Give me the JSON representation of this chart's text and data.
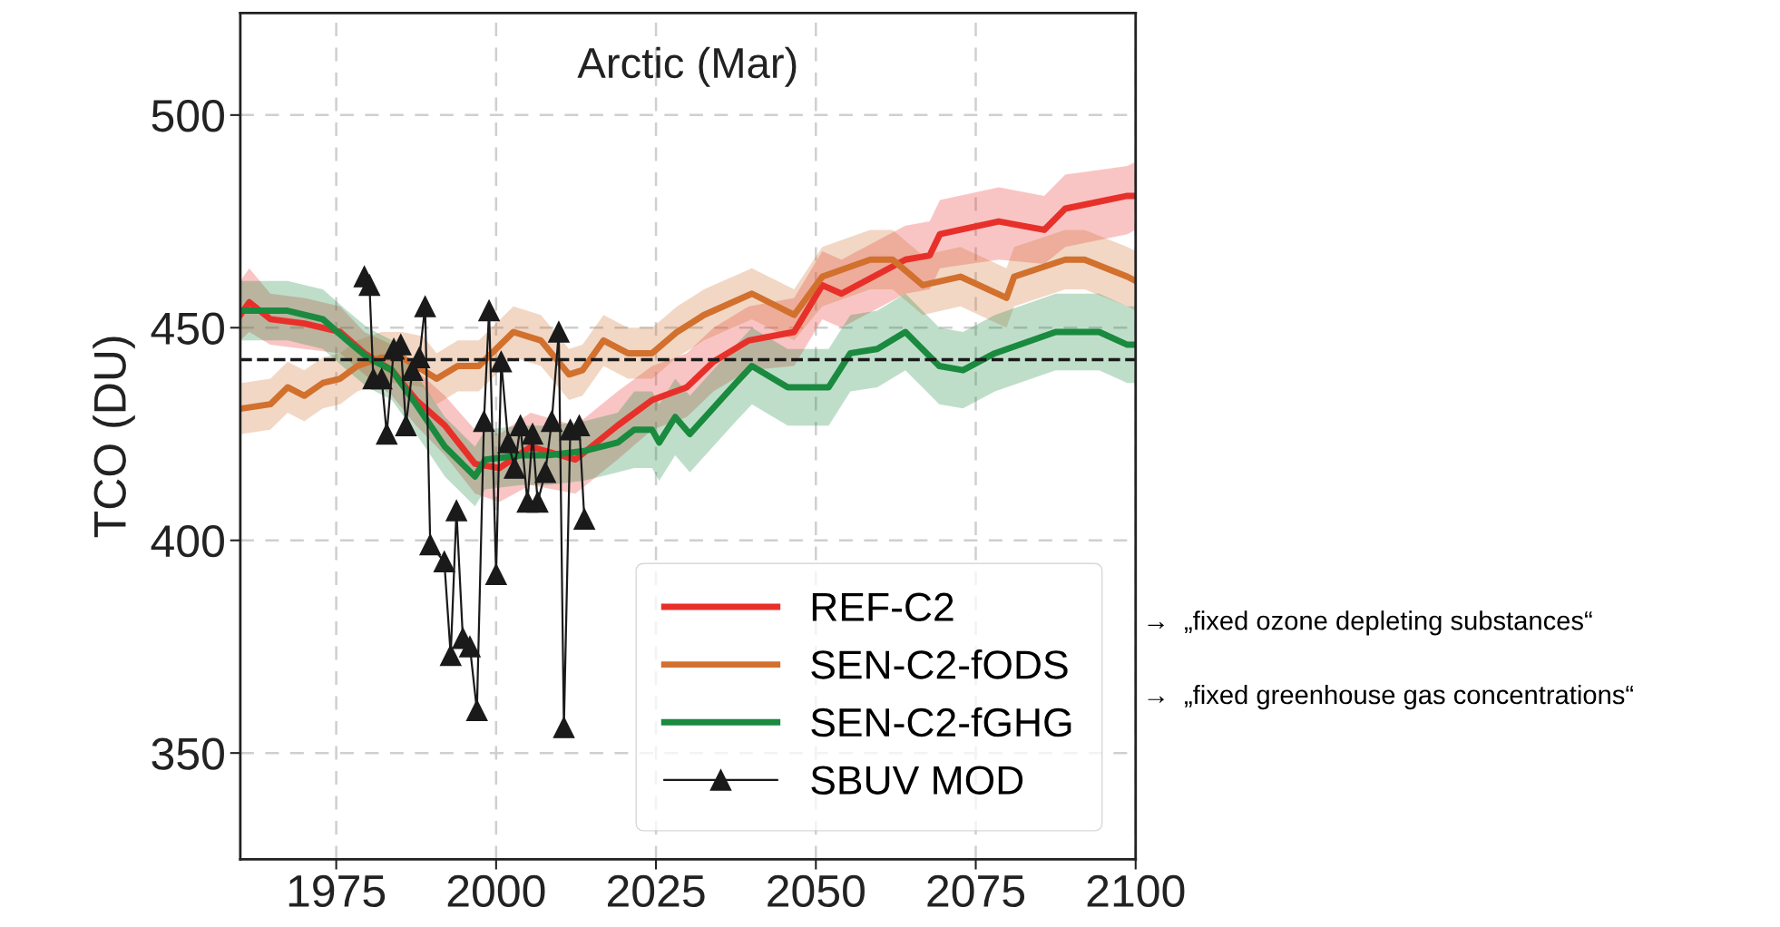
{
  "chart_data": {
    "type": "line",
    "title": "Arctic (Mar)",
    "ylabel": "TCO (DU)",
    "xlim": [
      1960,
      2100
    ],
    "xticks": [
      1975,
      2000,
      2025,
      2050,
      2075,
      2100
    ],
    "ylim": [
      325,
      524
    ],
    "yticks": [
      350,
      400,
      450,
      500
    ],
    "grid": true,
    "legend": "lower right",
    "line_style": "solid",
    "ref_lines": [
      {
        "axis": "y",
        "value": 442.5,
        "color": "#1a1a1a",
        "line_style": "dashed"
      }
    ],
    "annotations": [
      "→  „fixed ozone depleting substances“",
      "→  „fixed greenhouse gas concentrations“"
    ],
    "series": [
      {
        "name": "REF-C2",
        "color": "#e8302a",
        "x": [
          1960,
          1961.4,
          1964.7,
          1970,
          1975.6,
          1979.4,
          1983.7,
          1987.5,
          1992,
          1996.7,
          2000.5,
          2005.4,
          2012.4,
          2019,
          2024.4,
          2029.8,
          2034,
          2039.5,
          2046.6,
          2051,
          2054,
          2064,
          2067.8,
          2069.4,
          2078.6,
          2085.7,
          2089,
          2098.7,
          2100
        ],
        "values": [
          453,
          456,
          452,
          451,
          449,
          444,
          440,
          433,
          427,
          418,
          417,
          422,
          419,
          427,
          433,
          436,
          442,
          447,
          449,
          460,
          458,
          466,
          467,
          472,
          475,
          473,
          478,
          481,
          481
        ],
        "lower": [
          447,
          449,
          446,
          445,
          444,
          439,
          434,
          427,
          420,
          411,
          409,
          413,
          411,
          419,
          426,
          429,
          435,
          440,
          441,
          452,
          450,
          458,
          459,
          464,
          466,
          465,
          469,
          472,
          473
        ],
        "upper": [
          461,
          464,
          458,
          457,
          455,
          449,
          446,
          440,
          434,
          426,
          425,
          430,
          427,
          435,
          441,
          444,
          450,
          455,
          457,
          468,
          466,
          474,
          475,
          480,
          483,
          481,
          486,
          488,
          489
        ]
      },
      {
        "name": "SEN-C2-fODS",
        "color": "#d2702e",
        "x": [
          1960.2,
          1964.7,
          1967.4,
          1970,
          1972.9,
          1975.6,
          1978.3,
          1982.1,
          1985.3,
          1988.6,
          1990.7,
          1994,
          1997.3,
          2002.7,
          2007,
          2011.4,
          2013.5,
          2016.8,
          2020.6,
          2024.4,
          2028.3,
          2032.5,
          2040,
          2046.6,
          2051,
          2058.5,
          2062,
          2066.7,
          2072.6,
          2079.8,
          2081,
          2089,
          2092,
          2098.7,
          2100
        ],
        "values": [
          431,
          432,
          436,
          434,
          437,
          438,
          441,
          443,
          443,
          440,
          438,
          441,
          441,
          449,
          447,
          439,
          440,
          447,
          444,
          444,
          449,
          453,
          458,
          453,
          462,
          466,
          466,
          460,
          462,
          457,
          462,
          466,
          466,
          462,
          461
        ],
        "lower": [
          425,
          426,
          430,
          428,
          431,
          432,
          435,
          437,
          437,
          436,
          432,
          435,
          435,
          443,
          441,
          433,
          434,
          441,
          438,
          438,
          443,
          447,
          452,
          447,
          455,
          459,
          459,
          453,
          455,
          450,
          455,
          459,
          459,
          455,
          454
        ],
        "upper": [
          437,
          438,
          442,
          440,
          443,
          444,
          447,
          449,
          449,
          448,
          444,
          447,
          447,
          455,
          453,
          445,
          446,
          453,
          450,
          450,
          455,
          459,
          464,
          459,
          469,
          473,
          473,
          467,
          469,
          464,
          469,
          473,
          473,
          469,
          468
        ]
      },
      {
        "name": "SEN-C2-fGHG",
        "color": "#1a8a3f",
        "x": [
          1960,
          1967.4,
          1972.9,
          1976.7,
          1979.9,
          1983.7,
          1987.5,
          1992,
          1996.7,
          1998.3,
          2003.9,
          2008,
          2013.7,
          2019,
          2021.6,
          2024.4,
          2025.5,
          2028,
          2030.3,
          2037.5,
          2040,
          2045.6,
          2052,
          2055.4,
          2059.6,
          2064,
          2069.3,
          2073,
          2078,
          2087.5,
          2094.3,
          2098.7,
          2100
        ],
        "values": [
          454,
          454,
          452,
          447,
          443,
          440,
          432,
          422,
          415,
          419,
          420,
          420,
          421,
          423,
          426,
          426,
          423,
          429,
          425,
          437,
          441,
          436,
          436,
          444,
          445,
          449,
          441,
          440,
          444,
          449,
          449,
          446,
          446
        ],
        "lower": [
          447,
          447,
          445,
          440,
          436,
          433,
          425,
          415,
          408,
          412,
          413,
          413,
          414,
          416,
          417,
          417,
          414,
          420,
          416,
          428,
          432,
          427,
          427,
          435,
          436,
          440,
          432,
          431,
          435,
          440,
          440,
          437,
          437
        ],
        "upper": [
          461,
          461,
          459,
          454,
          450,
          447,
          439,
          429,
          422,
          426,
          427,
          427,
          428,
          430,
          435,
          435,
          432,
          438,
          434,
          446,
          450,
          445,
          445,
          453,
          454,
          458,
          450,
          449,
          453,
          458,
          458,
          455,
          455
        ]
      },
      {
        "name": "SBUV MOD",
        "color": "#1a1a1a",
        "marker": "triangle",
        "x": [
          1979.4,
          1980.2,
          1980.8,
          1982.1,
          1982.9,
          1984,
          1985.1,
          1985.9,
          1986.9,
          1988,
          1988.9,
          1989.7,
          1991.9,
          1992.9,
          1993.8,
          1994.8,
          1995.9,
          1997,
          1998.1,
          1998.9,
          2000,
          2000.8,
          2001.9,
          2002.9,
          2003.8,
          2004.9,
          2005.7,
          2006.5,
          2007.7,
          2008.7,
          2009.8,
          2010.6,
          2011.6,
          2013,
          2013.8
        ],
        "values": [
          462,
          460,
          438,
          438,
          425,
          445,
          446,
          427,
          440,
          443,
          455,
          399,
          395,
          373,
          407,
          377,
          375,
          360,
          428,
          454,
          392,
          442,
          423,
          417,
          427,
          409,
          425,
          409,
          416,
          428,
          449,
          356,
          426,
          427,
          405
        ]
      }
    ]
  }
}
